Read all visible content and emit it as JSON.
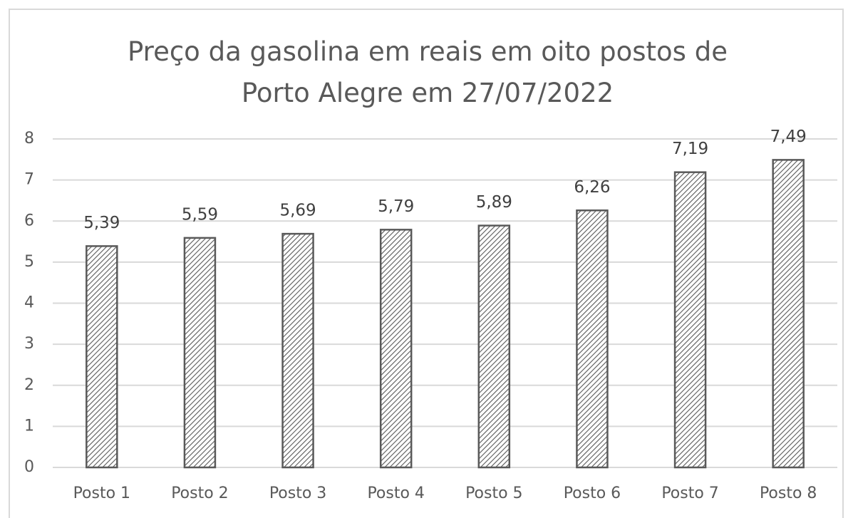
{
  "chart_data": {
    "type": "bar",
    "title": "Preço da gasolina em reais em oito postos de Porto Alegre em 27/07/2022",
    "categories": [
      "Posto 1",
      "Posto 2",
      "Posto 3",
      "Posto 4",
      "Posto 5",
      "Posto 6",
      "Posto 7",
      "Posto 8"
    ],
    "values": [
      5.39,
      5.59,
      5.69,
      5.79,
      5.89,
      6.26,
      7.19,
      7.49
    ],
    "value_labels": [
      "5,39",
      "5,59",
      "5,69",
      "5,79",
      "5,89",
      "6,26",
      "7,19",
      "7,49"
    ],
    "color": "#595959",
    "ylim": [
      0,
      8
    ],
    "yticks": [
      0,
      1,
      2,
      3,
      4,
      5,
      6,
      7,
      8
    ],
    "grid": true
  }
}
